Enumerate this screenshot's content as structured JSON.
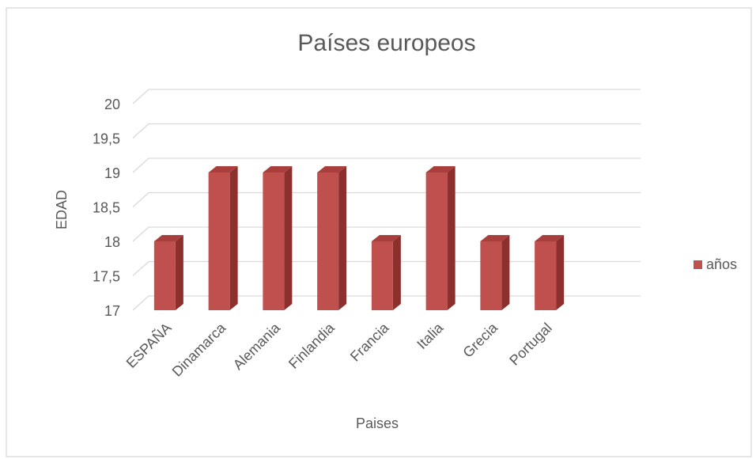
{
  "chart_data": {
    "type": "bar3d",
    "title": "Países europeos",
    "x_label": "Paises",
    "y_label": "EDAD",
    "categories": [
      "ESPAÑA",
      "Dinamarca",
      "Alemania",
      "Finlandia",
      "Francia",
      "Italia",
      "Grecia",
      "Portugal"
    ],
    "series": [
      {
        "name": "años",
        "color": "#c0504d",
        "values": [
          18,
          19,
          19,
          19,
          18,
          19,
          18,
          18
        ]
      }
    ],
    "ylim": [
      17,
      20
    ],
    "yticks": [
      17,
      {
        "value": 17.5,
        "label": "17,5"
      },
      18,
      {
        "value": 18.5,
        "label": "18,5"
      },
      19,
      {
        "value": 19.5,
        "label": "19,5"
      },
      20
    ],
    "grid": true,
    "legend": "right"
  }
}
